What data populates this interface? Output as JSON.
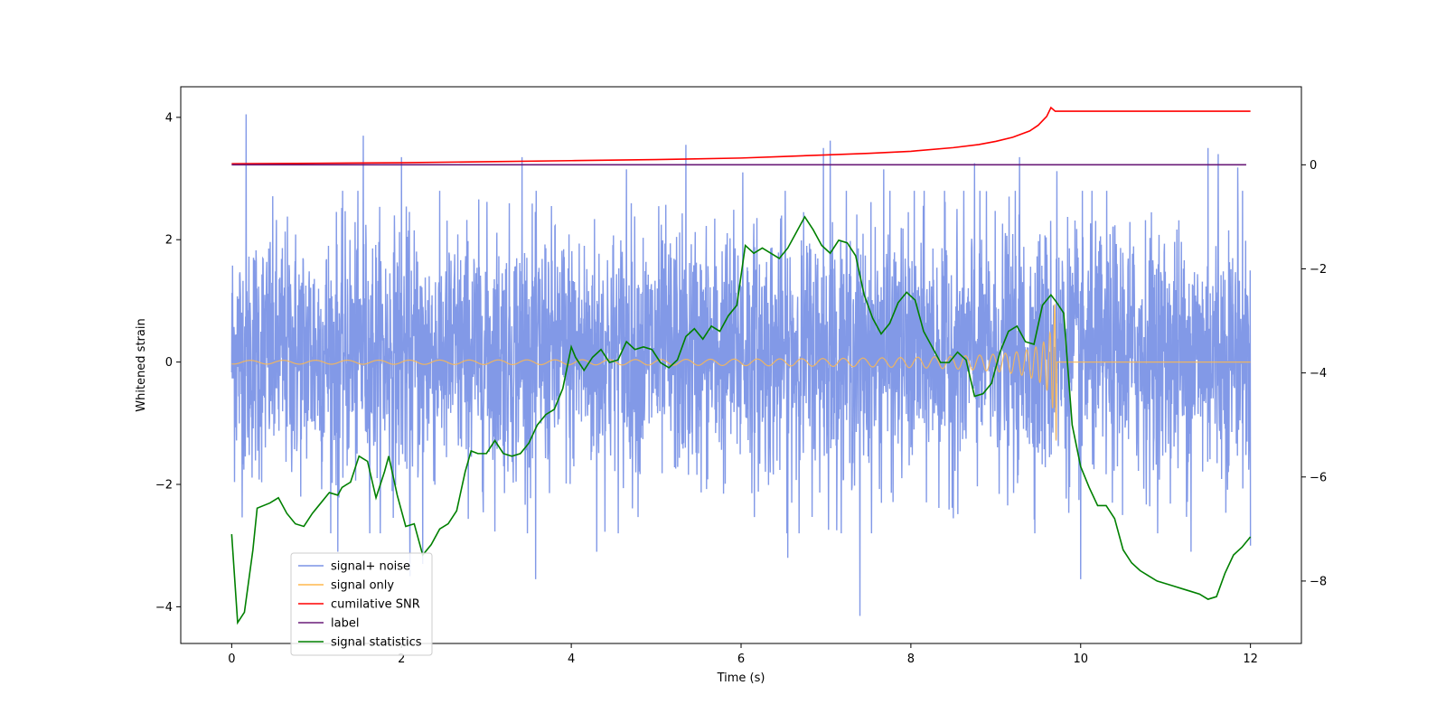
{
  "chart_data": {
    "type": "line",
    "xlabel": "Time (s)",
    "ylabel": "Whitened strain",
    "xlim": [
      -0.6,
      12.6
    ],
    "ylim": [
      -4.6,
      4.5
    ],
    "y2lim": [
      -9.2,
      1.5
    ],
    "xticks": [
      0,
      2,
      4,
      6,
      8,
      10,
      12
    ],
    "yticks": [
      -4,
      -2,
      0,
      2,
      4
    ],
    "y2ticks": [
      -8,
      -6,
      -4,
      -2,
      0
    ],
    "legend_position": "lower-left",
    "series": [
      {
        "name": "signal+ noise",
        "axis": "left",
        "color": "#7b93e6",
        "kind": "noise",
        "x_range": [
          0,
          12
        ],
        "typical_envelope": [
          -1.9,
          2.2
        ],
        "spikes": [
          [
            0.17,
            4.05
          ],
          [
            1.55,
            3.7
          ],
          [
            2.0,
            3.35
          ],
          [
            3.42,
            3.35
          ],
          [
            4.65,
            3.15
          ],
          [
            5.35,
            3.55
          ],
          [
            6.02,
            3.1
          ],
          [
            6.97,
            3.5
          ],
          [
            7.05,
            3.62
          ],
          [
            7.68,
            3.15
          ],
          [
            8.75,
            3.25
          ],
          [
            9.28,
            3.35
          ],
          [
            9.72,
            3.12
          ],
          [
            11.5,
            3.5
          ],
          [
            11.62,
            3.4
          ],
          [
            11.85,
            3.18
          ],
          [
            7.4,
            -4.15
          ],
          [
            2.1,
            -3.5
          ],
          [
            3.58,
            -3.55
          ],
          [
            1.25,
            -3.1
          ],
          [
            4.3,
            -3.1
          ],
          [
            10.0,
            -3.55
          ],
          [
            11.3,
            -3.1
          ],
          [
            12.0,
            -3.0
          ],
          [
            2.25,
            -3.3
          ],
          [
            6.55,
            -3.2
          ]
        ]
      },
      {
        "name": "signal only",
        "axis": "left",
        "color": "#ffb84d",
        "kind": "chirp",
        "x_range": [
          0,
          12
        ],
        "merger_time": 9.72,
        "peak_amplitude": [
          1.1,
          -1.3
        ]
      },
      {
        "name": "cumilative SNR",
        "axis": "right",
        "color": "#ff0000",
        "kind": "line",
        "x": [
          0,
          1,
          2,
          3,
          4,
          5,
          6,
          6.5,
          7,
          7.5,
          8,
          8.5,
          8.8,
          9.0,
          9.2,
          9.4,
          9.5,
          9.6,
          9.65,
          9.7,
          12.0
        ],
        "y": [
          0.02,
          0.03,
          0.04,
          0.06,
          0.08,
          0.1,
          0.13,
          0.16,
          0.19,
          0.22,
          0.26,
          0.33,
          0.39,
          0.45,
          0.53,
          0.65,
          0.76,
          0.93,
          1.1,
          1.03,
          1.03
        ]
      },
      {
        "name": "label",
        "axis": "right",
        "color": "#6a1b78",
        "kind": "line",
        "x": [
          0,
          11.95
        ],
        "y": [
          0.0,
          0.0
        ]
      },
      {
        "name": "signal statistics",
        "axis": "right",
        "color": "#008000",
        "kind": "line",
        "x": [
          0,
          0.07,
          0.15,
          0.25,
          0.3,
          0.45,
          0.55,
          0.65,
          0.75,
          0.85,
          0.95,
          1.05,
          1.15,
          1.25,
          1.3,
          1.4,
          1.5,
          1.6,
          1.7,
          1.8,
          1.85,
          1.95,
          2.05,
          2.15,
          2.25,
          2.35,
          2.45,
          2.55,
          2.65,
          2.75,
          2.82,
          2.9,
          3.0,
          3.1,
          3.2,
          3.3,
          3.4,
          3.5,
          3.6,
          3.7,
          3.8,
          3.9,
          4.0,
          4.05,
          4.15,
          4.25,
          4.35,
          4.45,
          4.55,
          4.65,
          4.75,
          4.85,
          4.95,
          5.05,
          5.15,
          5.25,
          5.35,
          5.45,
          5.55,
          5.65,
          5.75,
          5.85,
          5.95,
          6.05,
          6.15,
          6.25,
          6.35,
          6.45,
          6.55,
          6.65,
          6.75,
          6.85,
          6.95,
          7.05,
          7.15,
          7.25,
          7.35,
          7.45,
          7.55,
          7.65,
          7.75,
          7.85,
          7.95,
          8.05,
          8.15,
          8.25,
          8.35,
          8.45,
          8.55,
          8.65,
          8.75,
          8.85,
          8.95,
          9.05,
          9.15,
          9.25,
          9.35,
          9.45,
          9.55,
          9.65,
          9.72,
          9.8,
          9.9,
          10.0,
          10.1,
          10.2,
          10.3,
          10.4,
          10.5,
          10.6,
          10.7,
          10.8,
          10.9,
          11.0,
          11.1,
          11.2,
          11.3,
          11.4,
          11.5,
          11.6,
          11.7,
          11.8,
          11.9,
          12.0
        ],
        "y": [
          -7.1,
          -8.8,
          -8.6,
          -7.4,
          -6.6,
          -6.5,
          -6.4,
          -6.7,
          -6.9,
          -6.95,
          -6.7,
          -6.5,
          -6.3,
          -6.35,
          -6.2,
          -6.1,
          -5.6,
          -5.7,
          -6.4,
          -5.9,
          -5.6,
          -6.35,
          -6.95,
          -6.9,
          -7.5,
          -7.3,
          -7.0,
          -6.9,
          -6.65,
          -5.9,
          -5.5,
          -5.55,
          -5.55,
          -5.3,
          -5.55,
          -5.6,
          -5.55,
          -5.35,
          -5.0,
          -4.8,
          -4.7,
          -4.3,
          -3.5,
          -3.7,
          -3.95,
          -3.7,
          -3.55,
          -3.8,
          -3.75,
          -3.4,
          -3.55,
          -3.5,
          -3.55,
          -3.8,
          -3.9,
          -3.75,
          -3.3,
          -3.15,
          -3.35,
          -3.1,
          -3.2,
          -2.9,
          -2.7,
          -1.55,
          -1.7,
          -1.6,
          -1.7,
          -1.8,
          -1.6,
          -1.3,
          -1.0,
          -1.25,
          -1.55,
          -1.7,
          -1.45,
          -1.5,
          -1.75,
          -2.5,
          -2.95,
          -3.25,
          -3.05,
          -2.65,
          -2.45,
          -2.6,
          -3.2,
          -3.5,
          -3.8,
          -3.8,
          -3.6,
          -3.75,
          -4.45,
          -4.4,
          -4.2,
          -3.6,
          -3.2,
          -3.1,
          -3.4,
          -3.45,
          -2.7,
          -2.5,
          -2.65,
          -2.85,
          -5.0,
          -5.8,
          -6.2,
          -6.55,
          -6.55,
          -6.8,
          -7.4,
          -7.65,
          -7.8,
          -7.9,
          -8.0,
          -8.05,
          -8.1,
          -8.15,
          -8.2,
          -8.25,
          -8.35,
          -8.3,
          -7.85,
          -7.5,
          -7.35,
          -7.15
        ]
      }
    ]
  }
}
